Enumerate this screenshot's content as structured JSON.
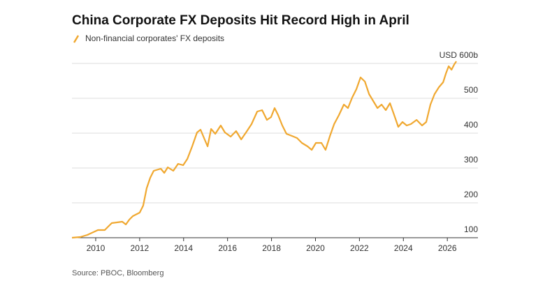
{
  "chart_data": {
    "type": "line",
    "title": "China Corporate FX Deposits Hit Record High in April",
    "source": "Source: PBOC, Bloomberg",
    "x": [
      2008.92,
      2009.3,
      2009.62,
      2010.1,
      2010.41,
      2010.73,
      2011.21,
      2011.37,
      2011.53,
      2011.69,
      2012.0,
      2012.16,
      2012.32,
      2012.48,
      2012.64,
      2012.96,
      2013.12,
      2013.28,
      2013.53,
      2013.75,
      2013.98,
      2014.17,
      2014.39,
      2014.61,
      2014.77,
      2014.93,
      2015.09,
      2015.25,
      2015.44,
      2015.69,
      2015.88,
      2016.14,
      2016.39,
      2016.62,
      2016.84,
      2017.09,
      2017.35,
      2017.57,
      2017.79,
      2017.98,
      2018.14,
      2018.3,
      2018.49,
      2018.68,
      2018.93,
      2019.16,
      2019.38,
      2019.64,
      2019.83,
      2020.02,
      2020.27,
      2020.46,
      2020.66,
      2020.85,
      2021.07,
      2021.29,
      2021.48,
      2021.67,
      2021.86,
      2022.05,
      2022.25,
      2022.44,
      2022.63,
      2022.82,
      2023.01,
      2023.2,
      2023.39,
      2023.58,
      2023.77,
      2023.96,
      2024.15,
      2024.34,
      2024.6,
      2024.85,
      2025.04,
      2025.23,
      2025.42,
      2025.62,
      2025.81,
      2025.94,
      2026.06,
      2026.19,
      2026.32,
      2026.41
    ],
    "series": [
      {
        "name": "Non-financial corporates' FX deposits",
        "color": "#f0a830",
        "values": [
          100,
          102,
          108,
          122,
          122,
          142,
          146,
          138,
          152,
          162,
          172,
          192,
          242,
          272,
          292,
          298,
          286,
          302,
          292,
          312,
          308,
          326,
          362,
          402,
          410,
          386,
          362,
          412,
          398,
          422,
          402,
          390,
          406,
          382,
          402,
          426,
          462,
          466,
          438,
          446,
          472,
          452,
          422,
          398,
          392,
          386,
          372,
          362,
          352,
          372,
          372,
          352,
          392,
          426,
          452,
          482,
          472,
          502,
          526,
          560,
          548,
          512,
          492,
          472,
          482,
          466,
          486,
          452,
          418,
          432,
          422,
          426,
          438,
          422,
          432,
          482,
          512,
          532,
          546,
          572,
          592,
          582,
          598,
          606
        ]
      }
    ],
    "xlim": [
      2008.92,
      2026.63
    ],
    "xticks": [
      2010,
      2012,
      2014,
      2016,
      2018,
      2020,
      2022,
      2024,
      2026
    ],
    "ylim": [
      100,
      610
    ],
    "yticks": [
      100,
      200,
      300,
      400,
      500,
      {
        "value": 600,
        "label": "USD 600b"
      }
    ],
    "grid": true
  }
}
